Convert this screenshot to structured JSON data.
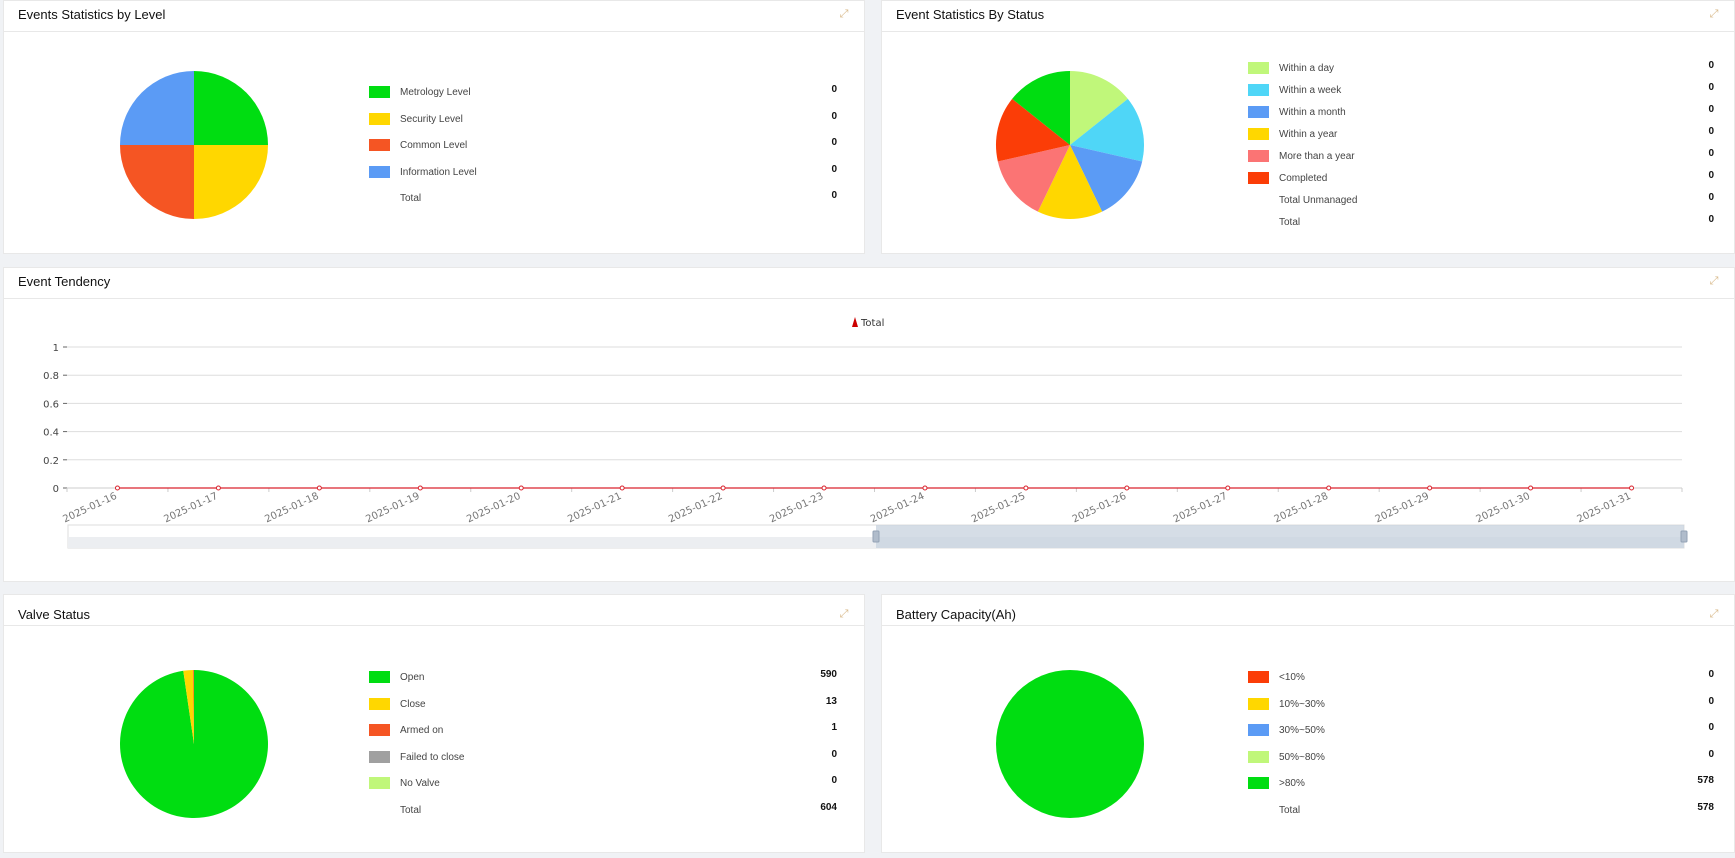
{
  "panels": {
    "level": {
      "title": "Events Statistics by Level",
      "items": [
        {
          "label": "Metrology Level",
          "value": "0",
          "color": "#00dd11"
        },
        {
          "label": "Security Level",
          "value": "0",
          "color": "#ffd700"
        },
        {
          "label": "Common Level",
          "value": "0",
          "color": "#f55523"
        },
        {
          "label": "Information Level",
          "value": "0",
          "color": "#5b9bf5"
        },
        {
          "label": "Total",
          "value": "0",
          "color": null
        }
      ],
      "slice_colors": [
        "#00dd11",
        "#ffd700",
        "#f55523",
        "#5b9bf5"
      ]
    },
    "status": {
      "title": "Event Statistics By Status",
      "items": [
        {
          "label": "Within a day",
          "value": "0",
          "color": "#c0f77a"
        },
        {
          "label": "Within a week",
          "value": "0",
          "color": "#4fd6f7"
        },
        {
          "label": "Within a month",
          "value": "0",
          "color": "#5b9bf5"
        },
        {
          "label": "Within a year",
          "value": "0",
          "color": "#ffd700"
        },
        {
          "label": "More than a year",
          "value": "0",
          "color": "#fb7474"
        },
        {
          "label": "Completed",
          "value": "0",
          "color": "#fb3d07"
        },
        {
          "label": "Total Unmanaged",
          "value": "0",
          "color": null
        },
        {
          "label": "Total",
          "value": "0",
          "color": null
        }
      ],
      "slice_colors": [
        "#c0f77a",
        "#4fd6f7",
        "#5b9bf5",
        "#ffd700",
        "#fb7474",
        "#fb3d07",
        "#00dd11"
      ]
    },
    "valve": {
      "title": "Valve Status",
      "items": [
        {
          "label": "Open",
          "value": "590",
          "color": "#00dd11"
        },
        {
          "label": "Close",
          "value": "13",
          "color": "#ffd700"
        },
        {
          "label": "Armed on",
          "value": "1",
          "color": "#f55523"
        },
        {
          "label": "Failed to close",
          "value": "0",
          "color": "#a0a0a0"
        },
        {
          "label": "No Valve",
          "value": "0",
          "color": "#c0f77a"
        },
        {
          "label": "Total",
          "value": "604",
          "color": null
        }
      ],
      "slice_colors": [
        "#00dd11",
        "#ffd700",
        "#f55523",
        "#a0a0a0",
        "#c0f77a"
      ]
    },
    "battery": {
      "title": "Battery Capacity(Ah)",
      "items": [
        {
          "label": "<10%",
          "value": "0",
          "color": "#fb3d07"
        },
        {
          "label": "10%~30%",
          "value": "0",
          "color": "#ffd700"
        },
        {
          "label": "30%~50%",
          "value": "0",
          "color": "#5b9bf5"
        },
        {
          "label": "50%~80%",
          "value": "0",
          "color": "#c0f77a"
        },
        {
          "label": ">80%",
          "value": "578",
          "color": "#00dd11"
        },
        {
          "label": "Total",
          "value": "578",
          "color": null
        }
      ],
      "slice_colors": [
        "#fb3d07",
        "#ffd700",
        "#5b9bf5",
        "#c0f77a",
        "#00dd11"
      ]
    }
  },
  "tendency": {
    "title": "Event Tendency"
  },
  "expand_icon": "expand-icon",
  "chart_data": {
    "type": "line",
    "legend": "Total",
    "legend_placement": "top-center",
    "x": [
      "2025-01-16",
      "2025-01-17",
      "2025-01-18",
      "2025-01-19",
      "2025-01-20",
      "2025-01-21",
      "2025-01-22",
      "2025-01-23",
      "2025-01-24",
      "2025-01-25",
      "2025-01-26",
      "2025-01-27",
      "2025-01-28",
      "2025-01-29",
      "2025-01-30",
      "2025-01-31"
    ],
    "series": [
      {
        "name": "Total",
        "values": [
          0,
          0,
          0,
          0,
          0,
          0,
          0,
          0,
          0,
          0,
          0,
          0,
          0,
          0,
          0,
          0
        ],
        "color": "#d9232d"
      }
    ],
    "yticks": [
      "0",
      "0.2",
      "0.4",
      "0.6",
      "0.8",
      "1"
    ],
    "ylim": [
      0,
      1
    ],
    "grid": true,
    "zoom_slider": {
      "start_percent": 50,
      "end_percent": 100
    }
  }
}
